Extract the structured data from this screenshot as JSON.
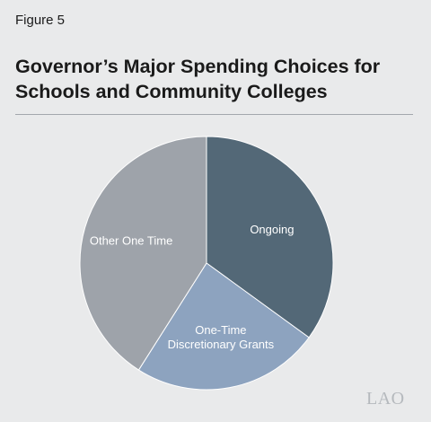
{
  "figure_label": "Figure 5",
  "title": "Governor’s Major Spending Choices for Schools and Community Colleges",
  "logo_text": "LAO",
  "chart_data": {
    "type": "pie",
    "title": "Governor’s Major Spending Choices for Schools and Community Colleges",
    "slices": [
      {
        "label": "Ongoing",
        "value": 35,
        "color": "#536877"
      },
      {
        "label": "One-Time Discretionary Grants",
        "label_lines": [
          "One-Time",
          "Discretionary Grants"
        ],
        "value": 24,
        "color": "#8da3bf"
      },
      {
        "label": "Other One Time",
        "value": 41,
        "color": "#9ea3aa"
      }
    ],
    "start_angle_deg": 0,
    "direction": "clockwise"
  }
}
